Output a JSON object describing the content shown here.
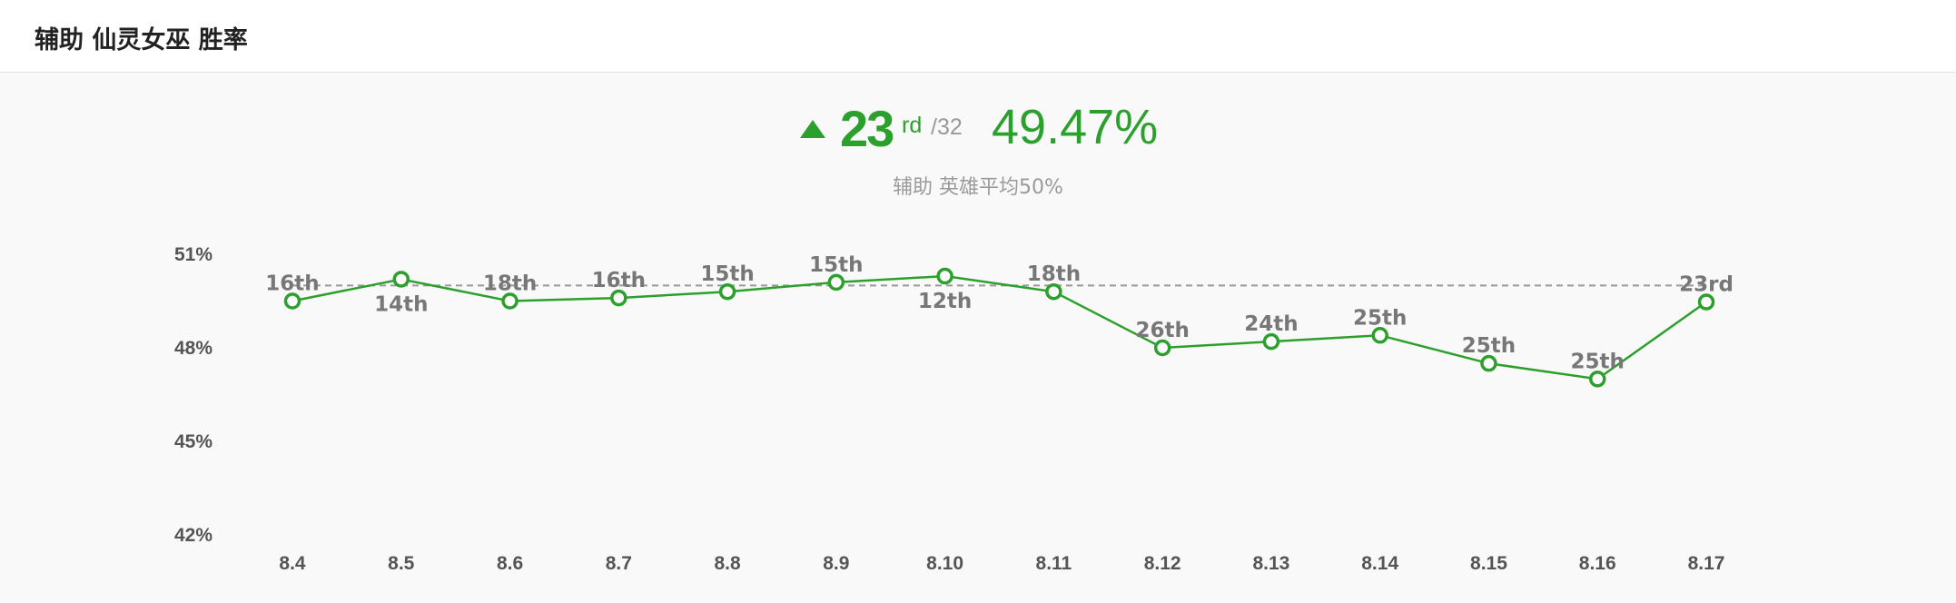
{
  "header": {
    "title": "辅助 仙灵女巫 胜率"
  },
  "summary": {
    "rank": "23",
    "rank_suffix": "rd",
    "rank_total": "/32",
    "winrate": "49.47%",
    "subtitle": "辅助 英雄平均50%",
    "trend": "up",
    "trend_icon": "triangle-up-icon"
  },
  "colors": {
    "accent": "#2ca02c",
    "average_line": "#999999",
    "axis_text": "#555555",
    "point_label": "#777777"
  },
  "chart_data": {
    "type": "line",
    "categories": [
      "8.4",
      "8.5",
      "8.6",
      "8.7",
      "8.8",
      "8.9",
      "8.10",
      "8.11",
      "8.12",
      "8.13",
      "8.14",
      "8.15",
      "8.16",
      "8.17"
    ],
    "series": [
      {
        "values": [
          49.5,
          50.2,
          49.5,
          49.6,
          49.8,
          50.1,
          50.3,
          49.8,
          48.0,
          48.2,
          48.4,
          47.5,
          47.0,
          49.47
        ],
        "ranks": [
          "16th",
          "14th",
          "18th",
          "16th",
          "15th",
          "15th",
          "12th",
          "18th",
          "26th",
          "24th",
          "25th",
          "25th",
          "25th",
          "23rd"
        ]
      }
    ],
    "reference_line": 50,
    "y_ticks": [
      "51%",
      "48%",
      "45%",
      "42%"
    ],
    "ylim": [
      42,
      51
    ],
    "grid": false,
    "legend": "none"
  }
}
